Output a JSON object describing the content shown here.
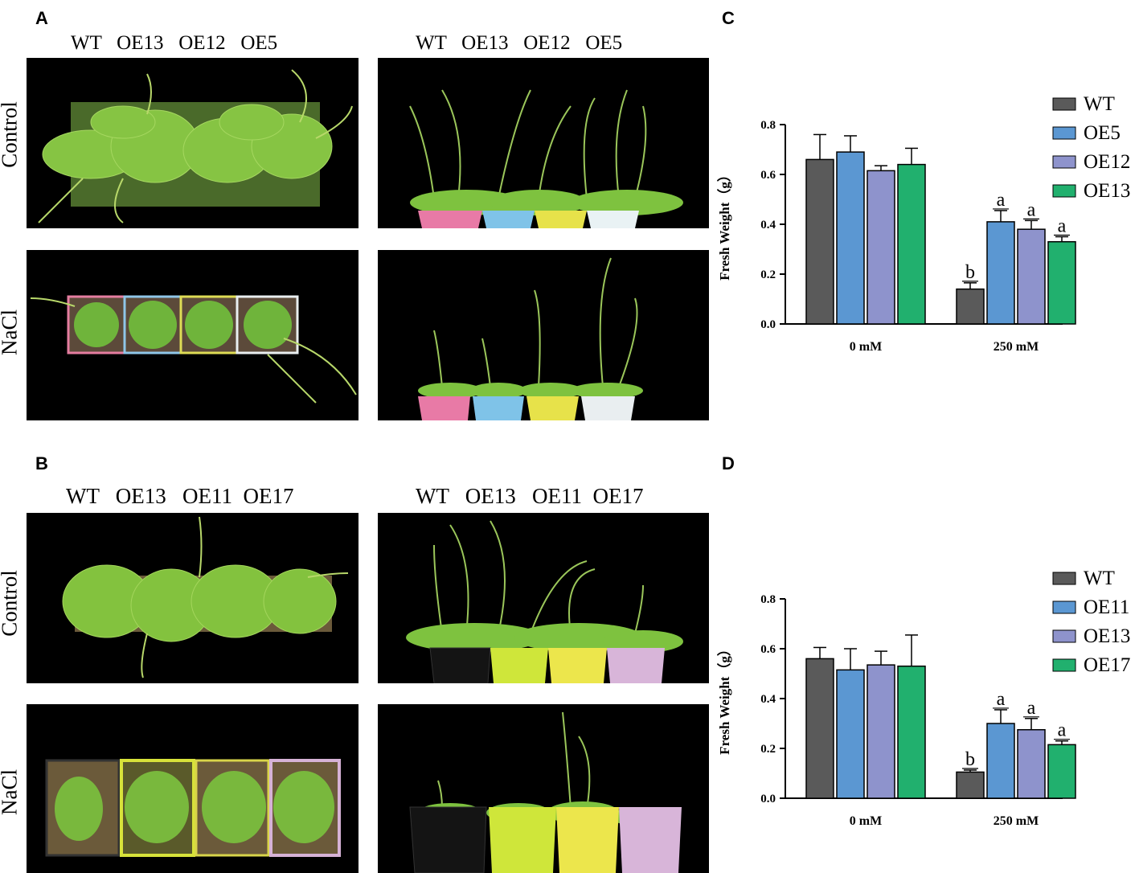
{
  "panels": {
    "A": {
      "letter": "A",
      "genotypes_left": "WT   OE13   OE12   OE5",
      "genotypes_right": "WT   OE13   OE12   OE5",
      "row1": "Control",
      "row2": "NaCl"
    },
    "B": {
      "letter": "B",
      "genotypes_left": "WT   OE13   OE11  OE17",
      "genotypes_right": "WT   OE13   OE11  OE17",
      "row1": "Control",
      "row2": "NaCl"
    },
    "C": {
      "letter": "C"
    },
    "D": {
      "letter": "D"
    }
  },
  "colors": {
    "WT": "#5a5a5a",
    "blue": "#5b97d2",
    "lavender": "#8e93cc",
    "green": "#21b06e",
    "plant": "#7ec23f",
    "background": "#000000"
  },
  "chart_data": [
    {
      "type": "bar",
      "panel": "C",
      "ylabel": "Fresh Weight（g）",
      "ylim": [
        0,
        0.8
      ],
      "yticks": [
        "0.0",
        "0.2",
        "0.4",
        "0.6",
        "0.8"
      ],
      "categories": [
        "0 mM",
        "250 mM"
      ],
      "series": [
        {
          "name": "WT",
          "color": "#5a5a5a",
          "values": [
            0.66,
            0.14
          ],
          "err": [
            0.1,
            0.025
          ],
          "labels": [
            "",
            "b"
          ]
        },
        {
          "name": "OE5",
          "color": "#5b97d2",
          "values": [
            0.69,
            0.41
          ],
          "err": [
            0.065,
            0.045
          ],
          "labels": [
            "",
            "a"
          ]
        },
        {
          "name": "OE12",
          "color": "#8e93cc",
          "values": [
            0.615,
            0.38
          ],
          "err": [
            0.02,
            0.035
          ],
          "labels": [
            "",
            "a"
          ]
        },
        {
          "name": "OE13",
          "color": "#21b06e",
          "values": [
            0.64,
            0.33
          ],
          "err": [
            0.065,
            0.02
          ],
          "labels": [
            "",
            "a"
          ]
        }
      ]
    },
    {
      "type": "bar",
      "panel": "D",
      "ylabel": "Fresh Weight（g）",
      "ylim": [
        0,
        0.8
      ],
      "yticks": [
        "0.0",
        "0.2",
        "0.4",
        "0.6",
        "0.8"
      ],
      "categories": [
        "0 mM",
        "250 mM"
      ],
      "series": [
        {
          "name": "WT",
          "color": "#5a5a5a",
          "values": [
            0.56,
            0.105
          ],
          "err": [
            0.045,
            0.008
          ],
          "labels": [
            "",
            "b"
          ]
        },
        {
          "name": "OE11",
          "color": "#5b97d2",
          "values": [
            0.515,
            0.3
          ],
          "err": [
            0.085,
            0.055
          ],
          "labels": [
            "",
            "a"
          ]
        },
        {
          "name": "OE13",
          "color": "#8e93cc",
          "values": [
            0.535,
            0.275
          ],
          "err": [
            0.055,
            0.045
          ],
          "labels": [
            "",
            "a"
          ]
        },
        {
          "name": "OE17",
          "color": "#21b06e",
          "values": [
            0.53,
            0.215
          ],
          "err": [
            0.125,
            0.015
          ],
          "labels": [
            "",
            "a"
          ]
        }
      ]
    }
  ]
}
